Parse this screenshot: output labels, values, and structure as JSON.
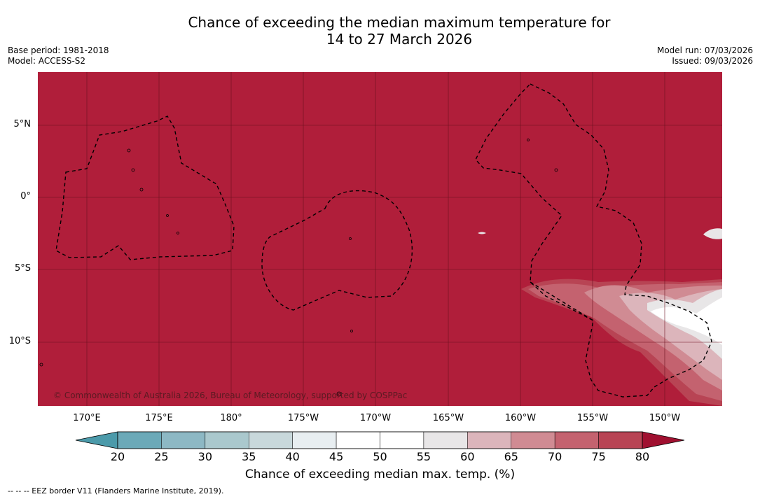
{
  "title": {
    "line1": "Chance of exceeding the median maximum temperature for",
    "line2": "14 to 27 March 2026"
  },
  "meta": {
    "base_period": "Base period: 1981-2018",
    "model": "Model: ACCESS-S2",
    "model_run": "Model run: 07/03/2026",
    "issued": "Issued: 09/03/2026"
  },
  "map": {
    "lat_labels": [
      "5°N",
      "0°",
      "5°S",
      "10°S"
    ],
    "lon_labels": [
      "170°E",
      "175°E",
      "180°",
      "175°W",
      "170°W",
      "165°W",
      "160°W",
      "155°W",
      "150°W"
    ],
    "credit": "© Commonwealth of Australia 2026, Bureau of Meteorology, supported by COSPPac",
    "colors": {
      "high": "#b01e3a",
      "grid": "#6a0f1e"
    }
  },
  "colorbar": {
    "ticks": [
      "20",
      "25",
      "30",
      "35",
      "40",
      "45",
      "50",
      "55",
      "60",
      "65",
      "70",
      "75",
      "80"
    ],
    "colors": [
      "#6ba9b8",
      "#8db8c4",
      "#aac8cd",
      "#c8d8db",
      "#e8eef1",
      "#ffffff",
      "#ffffff",
      "#e8e6e7",
      "#dcb5bb",
      "#d08b93",
      "#c4626f",
      "#b84454"
    ],
    "low_extend_color": "#4b9aaa",
    "high_extend_color": "#a01030",
    "label": "Chance of exceeding median max. temp. (%)"
  },
  "footer": {
    "eez_note": "--  --  -- EEZ border V11 (Flanders Marine Institute, 2019)."
  }
}
